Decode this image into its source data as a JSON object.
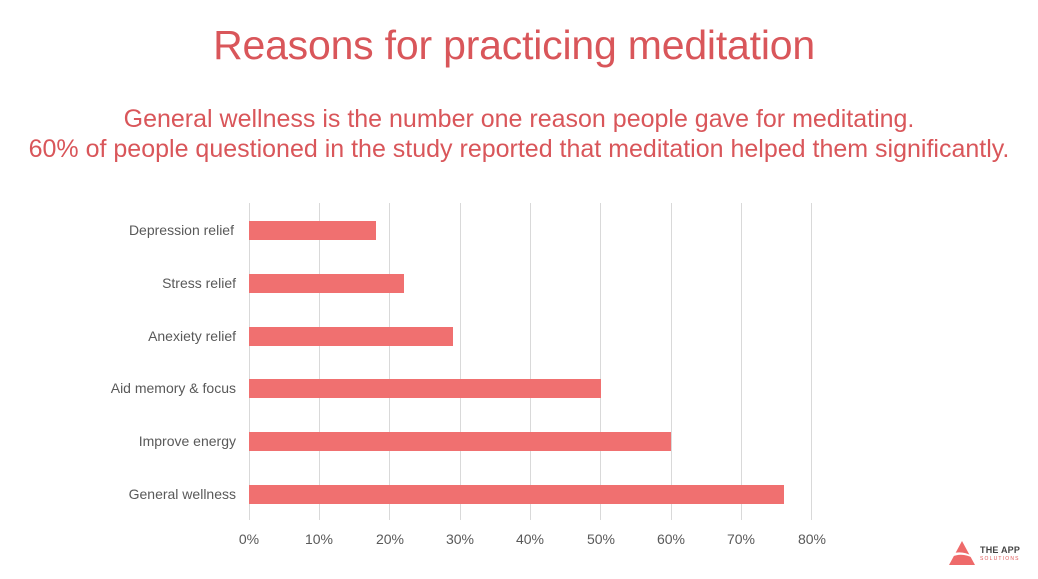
{
  "header": {
    "title": "Reasons for practicing meditation",
    "subtitle_line1": "General wellness is the number one reason people gave for meditating.",
    "subtitle_line2": "60% of people questioned in the study reported that meditation helped them significantly."
  },
  "colors": {
    "title": "#d9565a",
    "bar": "#f07070",
    "grid": "#d9d9d9",
    "label": "#595959"
  },
  "logo": {
    "line1": "THE APP",
    "line2": "SOLUTIONS",
    "icon": "triangle-logo-icon"
  },
  "chart_data": {
    "type": "bar",
    "orientation": "horizontal",
    "title": "Reasons for practicing meditation",
    "subtitle": "General wellness is the number one reason people gave for meditating. 60% of people questioned in the study reported that meditation helped them significantly.",
    "categories": [
      "Depression relief",
      "Stress relief",
      "Anexiety relief",
      "Aid memory & focus",
      "Improve energy",
      "General wellness"
    ],
    "values": [
      18,
      22,
      29,
      50,
      60,
      76
    ],
    "unit": "%",
    "xlabel": "",
    "ylabel": "",
    "xlim": [
      0,
      80
    ],
    "x_ticks": [
      "0%",
      "10%",
      "20%",
      "30%",
      "40%",
      "50%",
      "60%",
      "70%",
      "80%"
    ],
    "grid": "vertical",
    "legend": "none"
  }
}
